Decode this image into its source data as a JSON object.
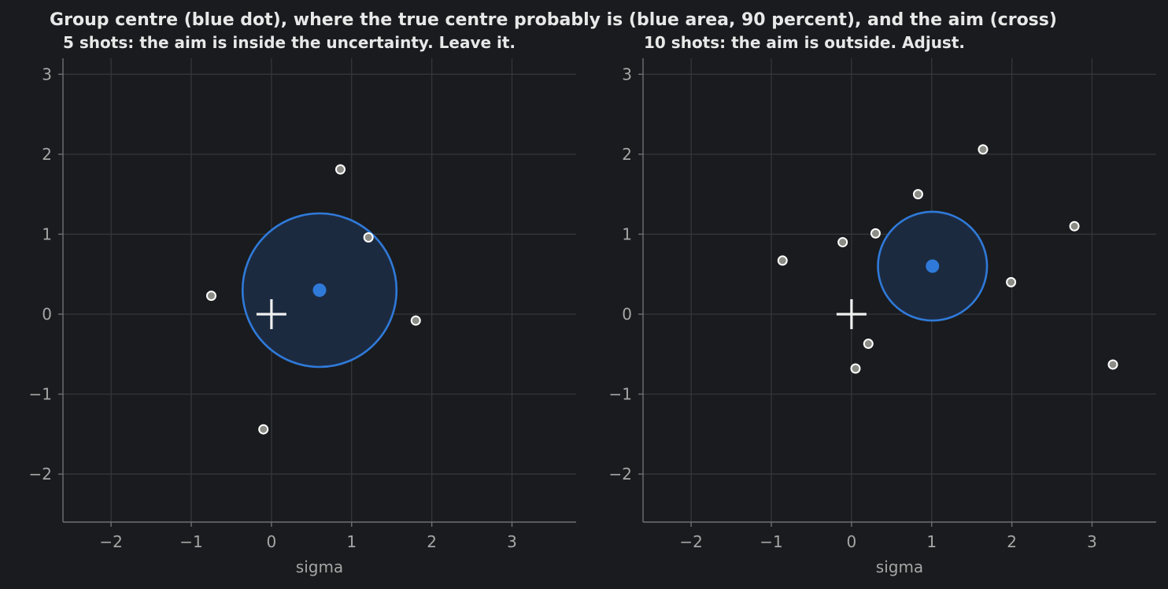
{
  "title": "Group centre (blue dot), where the true centre probably is (blue area, 90 percent), and the aim (cross)",
  "colors": {
    "background": "#1a1b1e",
    "accent_blue": "#2f7ad9",
    "region_fill": "#1c2a40",
    "shot_fill": "#8c8c86",
    "shot_edge": "#ffffff",
    "aim_cross": "#f0f0f0"
  },
  "chart_data": [
    {
      "type": "scatter",
      "title": "5 shots: the aim is inside the uncertainty. Leave it.",
      "xlabel": "sigma",
      "ylabel": "",
      "xlim": [
        -2.6,
        3.8
      ],
      "ylim": [
        -2.6,
        3.2
      ],
      "xticks": [
        -2,
        -1,
        0,
        1,
        2,
        3
      ],
      "yticks": [
        -2,
        -1,
        0,
        1,
        2,
        3
      ],
      "grid": true,
      "shots": [
        {
          "x": -0.75,
          "y": 0.23
        },
        {
          "x": 0.86,
          "y": 1.81
        },
        {
          "x": 1.21,
          "y": 0.96
        },
        {
          "x": 1.8,
          "y": -0.08
        },
        {
          "x": -0.1,
          "y": -1.44
        }
      ],
      "group_centre": {
        "x": 0.6,
        "y": 0.3
      },
      "confidence_region": {
        "level": 90,
        "radius": 0.96
      },
      "aim": {
        "x": 0,
        "y": 0
      }
    },
    {
      "type": "scatter",
      "title": "10 shots: the aim is outside. Adjust.",
      "xlabel": "sigma",
      "ylabel": "",
      "xlim": [
        -2.6,
        3.8
      ],
      "ylim": [
        -2.6,
        3.2
      ],
      "xticks": [
        -2,
        -1,
        0,
        1,
        2,
        3
      ],
      "yticks": [
        -2,
        -1,
        0,
        1,
        2,
        3
      ],
      "grid": true,
      "shots": [
        {
          "x": -0.86,
          "y": 0.67
        },
        {
          "x": -0.11,
          "y": 0.9
        },
        {
          "x": 0.3,
          "y": 1.01
        },
        {
          "x": 0.83,
          "y": 1.5
        },
        {
          "x": 1.64,
          "y": 2.06
        },
        {
          "x": 2.78,
          "y": 1.1
        },
        {
          "x": 1.99,
          "y": 0.4
        },
        {
          "x": 3.26,
          "y": -0.63
        },
        {
          "x": 0.21,
          "y": -0.37
        },
        {
          "x": 0.05,
          "y": -0.68
        }
      ],
      "group_centre": {
        "x": 1.01,
        "y": 0.6
      },
      "confidence_region": {
        "level": 90,
        "radius": 0.68
      },
      "aim": {
        "x": 0,
        "y": 0
      }
    }
  ]
}
